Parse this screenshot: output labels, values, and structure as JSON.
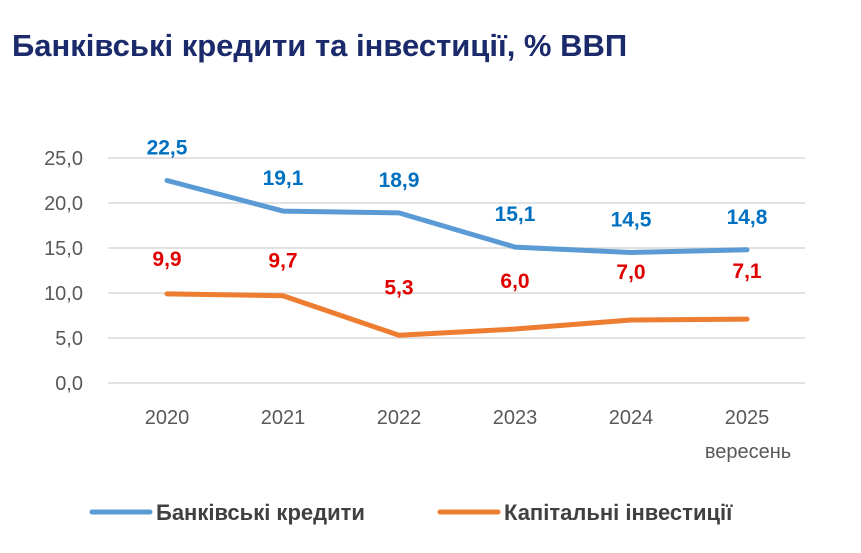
{
  "title": "Банківські кредити та інвестиції, % ВВП",
  "chart_data": {
    "type": "line",
    "title": "Банківські кредити та інвестиції, % ВВП",
    "categories": [
      "2020",
      "2021",
      "2022",
      "2023",
      "2024",
      "2025"
    ],
    "category_note": "вересень",
    "ylim": [
      0,
      25
    ],
    "yticks": [
      "0,0",
      "5,0",
      "10,0",
      "15,0",
      "20,0",
      "25,0"
    ],
    "grid": true,
    "legend_position": "bottom",
    "series": [
      {
        "name": "Банківські кредити",
        "color": "#5b9bd5",
        "label_color": "#0070c0",
        "values": [
          22.5,
          19.1,
          18.9,
          15.1,
          14.5,
          14.8
        ],
        "labels": [
          "22,5",
          "19,1",
          "18,9",
          "15,1",
          "14,5",
          "14,8"
        ]
      },
      {
        "name": "Капітальні інвестиції",
        "color": "#ed7d31",
        "label_color": "#e00000",
        "values": [
          9.9,
          9.7,
          5.3,
          6.0,
          7.0,
          7.1
        ],
        "labels": [
          "9,9",
          "9,7",
          "5,3",
          "6,0",
          "7,0",
          "7,1"
        ]
      }
    ]
  }
}
